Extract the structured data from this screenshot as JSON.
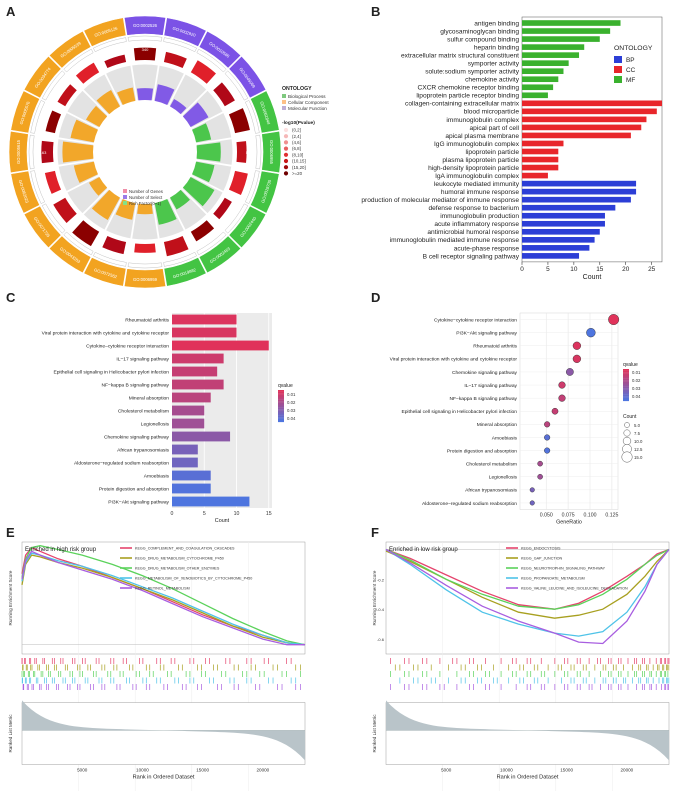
{
  "chart_data": [
    {
      "panel": "A",
      "type": "circular-go",
      "legend_title": "ONTOLOGY",
      "legend": [
        {
          "label": "Biological Process",
          "color": "#7fc97f"
        },
        {
          "label": "Cellular Component",
          "color": "#fdc086"
        },
        {
          "label": "Molecular Function",
          "color": "#beaed4"
        }
      ],
      "pval_title": "-log10(Pvalue)",
      "pval_bins": [
        "(0,2]",
        "(2,4]",
        "(4,6]",
        "(6,8]",
        "(8,10]",
        "(10,15]",
        "(15,20]",
        ">=20"
      ],
      "track_legend": [
        "Number of Genes",
        "Number of Select",
        "Rich Factor(0~1)"
      ],
      "terms": [
        "GO:0002526",
        "GO:0002920",
        "GO:0010586",
        "GO:0045069",
        "GO:0061844",
        "GO:0006955",
        "GO:0019730",
        "GO:0002440",
        "GO:0002463",
        "GO:0019882",
        "GO:0006959",
        "GO:0072562",
        "GO:0043203",
        "GO:0071735",
        "GO:0062023",
        "GO:0005615",
        "GO:0005576",
        "GO:0034774",
        "GO:0005539",
        "GO:0005126"
      ],
      "gene_counts": [
        "340",
        "179",
        "59",
        "1181",
        "108",
        "612",
        "1163",
        "412"
      ]
    },
    {
      "panel": "B",
      "type": "bar",
      "orientation": "horizontal",
      "xlabel": "Count",
      "xlim": [
        0,
        27
      ],
      "xticks": [
        "0",
        "5",
        "10",
        "15",
        "20",
        "25"
      ],
      "legend_title": "ONTOLOGY",
      "legend": [
        {
          "label": "BP",
          "color": "#2c3ed6"
        },
        {
          "label": "CC",
          "color": "#e8262b"
        },
        {
          "label": "MF",
          "color": "#3ab12e"
        }
      ],
      "categories": [
        "antigen binding",
        "glycosaminoglycan binding",
        "sulfur compound binding",
        "heparin binding",
        "extracellular matrix structural constituent",
        "symporter activity",
        "solute:sodium symporter activity",
        "chemokine activity",
        "CXCR chemokine receptor binding",
        "lipoprotein particle receptor binding",
        "collagen-containing extracellular matrix",
        "blood microparticle",
        "immunoglobulin complex",
        "apical part of cell",
        "apical plasma membrane",
        "IgG immunoglobulin complex",
        "lipoprotein particle",
        "plasma lipoprotein particle",
        "high-density lipoprotein particle",
        "IgA immunoglobulin complex",
        "leukocyte mediated immunity",
        "humoral immune response",
        "production of molecular mediator of immune response",
        "defense response to bacterium",
        "immunoglobulin production",
        "acute inflammatory response",
        "antimicrobial humoral response",
        "immunoglobulin mediated immune response",
        "acute-phase response",
        "B cell receptor signaling pathway"
      ],
      "values": [
        19,
        17,
        15,
        12,
        11,
        9,
        8,
        7,
        6,
        5,
        27,
        26,
        24,
        23,
        21,
        8,
        7,
        7,
        7,
        5,
        22,
        22,
        21,
        18,
        16,
        16,
        15,
        14,
        13,
        11
      ],
      "groups": [
        "MF",
        "MF",
        "MF",
        "MF",
        "MF",
        "MF",
        "MF",
        "MF",
        "MF",
        "MF",
        "CC",
        "CC",
        "CC",
        "CC",
        "CC",
        "CC",
        "CC",
        "CC",
        "CC",
        "CC",
        "BP",
        "BP",
        "BP",
        "BP",
        "BP",
        "BP",
        "BP",
        "BP",
        "BP",
        "BP"
      ]
    },
    {
      "panel": "C",
      "type": "bar",
      "orientation": "horizontal",
      "xlabel": "Count",
      "xlim": [
        0,
        15.5
      ],
      "xticks": [
        "0",
        "5",
        "10",
        "15"
      ],
      "legend_title": "qvalue",
      "legend_ticks": [
        "0.01",
        "0.02",
        "0.03",
        "0.04"
      ],
      "categories": [
        "Rheumatoid arthritis",
        "Viral protein interaction with cytokine and cytokine receptor",
        "Cytokine–cytokine receptor interaction",
        "IL−17 signaling pathway",
        "Epithelial cell signaling in Helicobacter pylori infection",
        "NF−kappa B signaling pathway",
        "Mineral absorption",
        "Cholesterol metabolism",
        "Legionellosis",
        "Chemokine signaling pathway",
        "African trypanosomiasis",
        "Aldosterone−regulated sodium reabsorption",
        "Amoebiasis",
        "Protein digestion and absorption",
        "PI3K−Akt signaling pathway"
      ],
      "values": [
        10,
        10,
        15,
        8,
        7,
        8,
        6,
        5,
        5,
        9,
        4,
        4,
        6,
        6,
        12
      ],
      "qvalues": [
        0.004,
        0.005,
        0.003,
        0.008,
        0.01,
        0.011,
        0.013,
        0.018,
        0.02,
        0.025,
        0.03,
        0.032,
        0.038,
        0.04,
        0.041
      ]
    },
    {
      "panel": "D",
      "type": "scatter",
      "xlabel": "GeneRatio",
      "xlim": [
        0.02,
        0.132
      ],
      "xticks": [
        "0.050",
        "0.075",
        "0.100",
        "0.125"
      ],
      "legend_title": "qvalue",
      "legend_ticks": [
        "0.01",
        "0.02",
        "0.03",
        "0.04"
      ],
      "size_title": "Count",
      "size_ticks": [
        "5.0",
        "7.5",
        "10.0",
        "12.5",
        "15.0"
      ],
      "categories": [
        "Cytokine−cytokine receptor interaction",
        "PI3K−Akt signaling pathway",
        "Rheumatoid arthritis",
        "Viral protein interaction with cytokine and cytokine receptor",
        "Chemokine signaling pathway",
        "IL−17 signaling pathway",
        "NF−kappa B signaling pathway",
        "Epithelial cell signaling in Helicobacter pylori infection",
        "Mineral absorption",
        "Amoebiasis",
        "Protein digestion and absorption",
        "Cholesterol metabolism",
        "Legionellosis",
        "African trypanosomiasis",
        "Aldosterone−regulated sodium reabsorption"
      ],
      "x": [
        0.127,
        0.101,
        0.085,
        0.085,
        0.077,
        0.068,
        0.068,
        0.06,
        0.051,
        0.051,
        0.051,
        0.043,
        0.043,
        0.034,
        0.034
      ],
      "counts": [
        15,
        12,
        10,
        10,
        9,
        8,
        8,
        7,
        6,
        6,
        6,
        5,
        5,
        4,
        4
      ],
      "qvalues": [
        0.003,
        0.041,
        0.004,
        0.005,
        0.025,
        0.008,
        0.011,
        0.01,
        0.013,
        0.038,
        0.04,
        0.018,
        0.02,
        0.03,
        0.032
      ]
    },
    {
      "panel": "E",
      "type": "line",
      "title": "Enriched in high risk group",
      "ylabel_top": "Running Enrichment Score",
      "ylabel_bottom": "Ranked List Metric",
      "xlabel": "Rank in Ordered Dataset",
      "xlim": [
        0,
        23500
      ],
      "ylim": [
        -0.05,
        0.55
      ],
      "xticks": [
        "5000",
        "10000",
        "15000",
        "20000"
      ],
      "series": [
        {
          "name": "KEGG_COMPLEMENT_AND_COAGULATION_CASCADES",
          "color": "#e5446d",
          "x": [
            0,
            300,
            800,
            1500,
            3000,
            5000,
            7500,
            10000,
            12500,
            15000,
            17500,
            20000,
            22000,
            23500
          ],
          "y": [
            0.38,
            0.48,
            0.52,
            0.5,
            0.46,
            0.42,
            0.36,
            0.3,
            0.23,
            0.16,
            0.1,
            0.05,
            0.01,
            0.0
          ]
        },
        {
          "name": "KEGG_DRUG_METABOLISM_CYTOCHROME_P450",
          "color": "#a8a020",
          "x": [
            0,
            300,
            800,
            1500,
            3000,
            5000,
            7500,
            10000,
            12500,
            15000,
            17500,
            20000,
            22000,
            23500
          ],
          "y": [
            0.32,
            0.43,
            0.48,
            0.47,
            0.44,
            0.41,
            0.36,
            0.3,
            0.24,
            0.17,
            0.1,
            0.04,
            0.01,
            0.0
          ]
        },
        {
          "name": "KEGG_DRUG_METABOLISM_OTHER_ENZYMES",
          "color": "#5bd25b",
          "x": [
            0,
            300,
            800,
            1500,
            3000,
            5000,
            7500,
            10000,
            12500,
            15000,
            17500,
            20000,
            22000,
            23500
          ],
          "y": [
            0.36,
            0.46,
            0.52,
            0.53,
            0.51,
            0.48,
            0.43,
            0.37,
            0.3,
            0.22,
            0.14,
            0.07,
            0.02,
            0.0
          ]
        },
        {
          "name": "KEGG_METABOLISM_OF_XENOBIOTICS_BY_CYTOCHROME_P450",
          "color": "#4fc3e8",
          "x": [
            0,
            300,
            800,
            1500,
            3000,
            5000,
            7500,
            10000,
            12500,
            15000,
            17500,
            20000,
            22000,
            23500
          ],
          "y": [
            0.34,
            0.44,
            0.49,
            0.48,
            0.45,
            0.42,
            0.37,
            0.31,
            0.25,
            0.18,
            0.11,
            0.05,
            0.01,
            0.0
          ]
        },
        {
          "name": "KEGG_RETINOL_METABOLISM",
          "color": "#a85ee0",
          "x": [
            0,
            300,
            800,
            1500,
            3000,
            5000,
            7500,
            10000,
            12500,
            15000,
            17500,
            20000,
            22000,
            23500
          ],
          "y": [
            0.35,
            0.45,
            0.5,
            0.48,
            0.44,
            0.4,
            0.35,
            0.29,
            0.22,
            0.15,
            0.09,
            0.03,
            0.0,
            0.0
          ]
        }
      ]
    },
    {
      "panel": "F",
      "type": "line",
      "title": "Enriched in low risk group",
      "ylabel_top": "Running Enrichment Score",
      "ylabel_bottom": "Ranked List Metric",
      "xlabel": "Rank in Ordered Dataset",
      "xlim": [
        0,
        23500
      ],
      "ylim": [
        -0.7,
        0.05
      ],
      "xticks": [
        "5000",
        "10000",
        "15000",
        "20000"
      ],
      "yticks": [
        "-0.2",
        "-0.4",
        "-0.6"
      ],
      "series": [
        {
          "name": "KEGG_ENDOCYTOSIS",
          "color": "#e5446d",
          "x": [
            0,
            2000,
            5000,
            8000,
            11000,
            14000,
            16000,
            18000,
            20000,
            21500,
            22500,
            23500
          ],
          "y": [
            0.0,
            -0.06,
            -0.17,
            -0.28,
            -0.37,
            -0.4,
            -0.36,
            -0.28,
            -0.18,
            -0.1,
            -0.03,
            0.0
          ]
        },
        {
          "name": "KEGG_GAP_JUNCTION",
          "color": "#a8a020",
          "x": [
            0,
            2000,
            5000,
            8000,
            11000,
            14000,
            16000,
            18000,
            20000,
            21500,
            22500,
            23500
          ],
          "y": [
            -0.01,
            -0.08,
            -0.2,
            -0.32,
            -0.42,
            -0.46,
            -0.44,
            -0.4,
            -0.3,
            -0.18,
            -0.08,
            0.0
          ]
        },
        {
          "name": "KEGG_NEUROTROPHIN_SIGNALING_PATHWAY",
          "color": "#5bd25b",
          "x": [
            0,
            2000,
            5000,
            8000,
            11000,
            14000,
            16000,
            18000,
            20000,
            21500,
            22500,
            23500
          ],
          "y": [
            0.0,
            -0.07,
            -0.2,
            -0.3,
            -0.38,
            -0.4,
            -0.37,
            -0.3,
            -0.2,
            -0.1,
            -0.04,
            0.0
          ]
        },
        {
          "name": "KEGG_PROPANOATE_METABOLISM",
          "color": "#4fc3e8",
          "x": [
            0,
            2000,
            5000,
            8000,
            11000,
            14000,
            16000,
            18000,
            20000,
            21500,
            22500,
            23500
          ],
          "y": [
            0.0,
            -0.1,
            -0.27,
            -0.42,
            -0.5,
            -0.56,
            -0.58,
            -0.55,
            -0.42,
            -0.25,
            -0.1,
            0.0
          ]
        },
        {
          "name": "KEGG_VALINE_LEUCINE_AND_ISOLEUCINE_DEGRADATION",
          "color": "#a85ee0",
          "x": [
            0,
            2000,
            5000,
            8000,
            11000,
            14000,
            16000,
            18000,
            20000,
            21500,
            22500,
            23500
          ],
          "y": [
            0.0,
            -0.09,
            -0.24,
            -0.38,
            -0.48,
            -0.56,
            -0.62,
            -0.63,
            -0.48,
            -0.28,
            -0.1,
            0.0
          ]
        }
      ]
    }
  ]
}
